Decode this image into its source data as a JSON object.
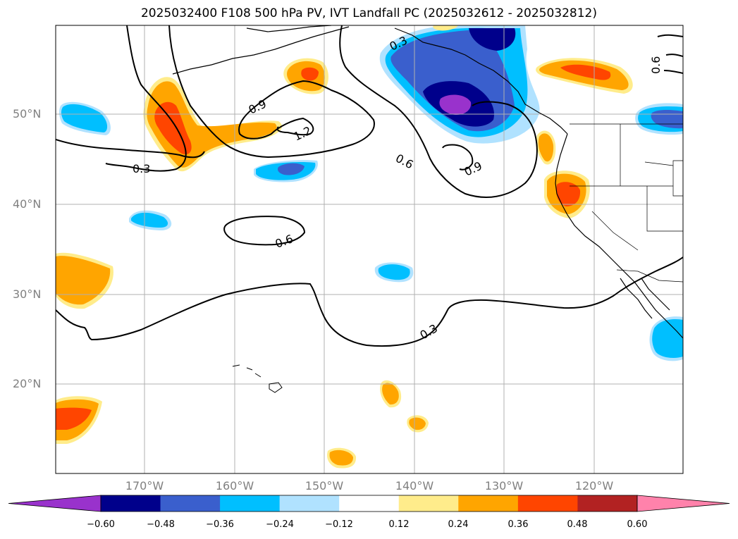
{
  "title": "2025032400 F108 500 hPa PV, IVT Landfall PC (2025032612 - 2025032812)",
  "lat_labels": [
    "50°N",
    "40°N",
    "30°N",
    "20°N"
  ],
  "lon_labels": [
    "170°W",
    "160°W",
    "150°W",
    "140°W",
    "130°W",
    "120°W"
  ],
  "contour_labels": [
    "0.3",
    "0.9",
    "1.2",
    "0.3",
    "0.6",
    "0.9",
    "0.6",
    "0.3",
    "0.6"
  ],
  "colorbar": {
    "ticks": [
      "−0.60",
      "−0.48",
      "−0.36",
      "−0.24",
      "−0.12",
      "0.12",
      "0.24",
      "0.36",
      "0.48",
      "0.60"
    ],
    "colors": [
      "#9932cc",
      "#00008b",
      "#3a5fcd",
      "#00bfff",
      "#b0e2ff",
      "#ffffff",
      "#ffec8b",
      "#ffa500",
      "#ff4500",
      "#b22222",
      "#ff82ab"
    ]
  },
  "chart_data": {
    "type": "map",
    "title": "2025032400 F108 500 hPa PV, IVT Landfall PC (2025032612 - 2025032812)",
    "lon_range": [
      -180,
      -110
    ],
    "lat_range": [
      10,
      60
    ],
    "grid": true,
    "filled_field_levels": [
      -0.6,
      -0.48,
      -0.36,
      -0.24,
      -0.12,
      0.12,
      0.24,
      0.36,
      0.48,
      0.6
    ],
    "contour_levels": [
      0.3,
      0.6,
      0.9,
      1.2
    ]
  }
}
